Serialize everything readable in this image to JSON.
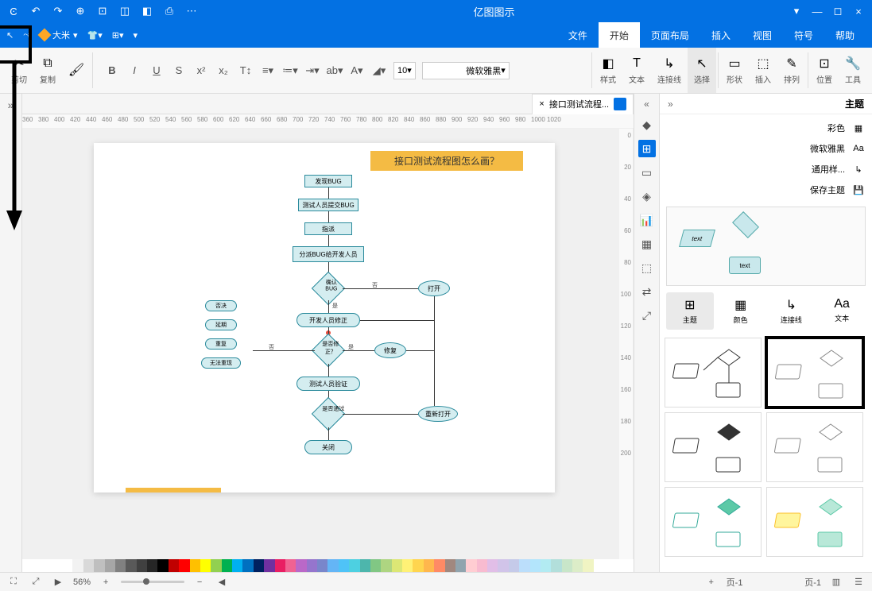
{
  "titlebar": {
    "app_title": "亿图图示"
  },
  "menubar": {
    "user_label": "大米"
  },
  "tabs": {
    "items": [
      {
        "label": "文件"
      },
      {
        "label": "开始"
      },
      {
        "label": "页面布局"
      },
      {
        "label": "插入"
      },
      {
        "label": "视图"
      },
      {
        "label": "符号"
      },
      {
        "label": "帮助"
      }
    ],
    "active_index": 1
  },
  "ribbon": {
    "font_name": "微软雅黑",
    "font_size": "10",
    "groups": [
      {
        "label": "剪切"
      },
      {
        "label": "复制"
      },
      {
        "label": "样式"
      },
      {
        "label": "选择"
      },
      {
        "label": "连接线"
      },
      {
        "label": "文本"
      },
      {
        "label": "形状"
      },
      {
        "label": "插入"
      },
      {
        "label": "排列"
      },
      {
        "label": "位置"
      },
      {
        "label": "工具"
      }
    ]
  },
  "doctab": {
    "name": "接口测试流程...",
    "close": "×"
  },
  "ruler_marks_h": [
    "360",
    "380",
    "400",
    "420",
    "440",
    "460",
    "480",
    "500",
    "520",
    "540",
    "560",
    "580",
    "600",
    "620",
    "640",
    "660",
    "680",
    "700",
    "720",
    "740",
    "760",
    "780",
    "800",
    "820",
    "840",
    "860",
    "880",
    "900",
    "920",
    "940",
    "960",
    "980",
    "1000",
    "1020"
  ],
  "ruler_marks_v": [
    "0",
    "20",
    "40",
    "60",
    "80",
    "100",
    "120",
    "140",
    "160",
    "180",
    "200"
  ],
  "page": {
    "title": "接口测试流程图怎么画？",
    "flow": {
      "box1": "发现BUG",
      "box2": "测试人员提交BUG",
      "box3": "指派",
      "box4": "分派BUG给开发人员",
      "dia1": "确认BUG",
      "ell1": "打开",
      "round1": "开发人员修正",
      "dia2": "是否修正？",
      "ell2": "修复",
      "round2": "测试人员验证",
      "dia3": "是否通过",
      "ell3": "重新打开",
      "round3": "关闭",
      "side1": "否决",
      "side2": "延期",
      "side3": "重复",
      "side4": "无法重现",
      "yn_yes": "是",
      "yn_no": "否"
    }
  },
  "vtoolbar": {
    "items": [
      "⊞",
      "▭",
      "◈",
      "▦",
      "⊡",
      "⬚",
      "⇄",
      "⤢"
    ],
    "active_index": 0
  },
  "rightpanel": {
    "title": "主题",
    "opt1": "彩色",
    "opt2": "微软雅黑",
    "opt3": "通用样...",
    "opt4": "保存主题",
    "tab_labels": [
      "主题",
      "颜色",
      "连接线",
      "文本"
    ],
    "tab_active": 0
  },
  "statusbar": {
    "page_left": "页-1",
    "page_right": "页-1",
    "zoom": "56%"
  },
  "palette_colors": [
    "#ffffff",
    "#f2f2f2",
    "#d9d9d9",
    "#bfbfbf",
    "#a6a6a6",
    "#808080",
    "#595959",
    "#404040",
    "#262626",
    "#000000",
    "#c00000",
    "#ff0000",
    "#ffc000",
    "#ffff00",
    "#92d050",
    "#00b050",
    "#00b0f0",
    "#0070c0",
    "#002060",
    "#7030a0",
    "#e91e63",
    "#f06292",
    "#ba68c8",
    "#9575cd",
    "#7986cb",
    "#64b5f6",
    "#4fc3f7",
    "#4dd0e1",
    "#4db6ac",
    "#81c784",
    "#aed581",
    "#dce775",
    "#fff176",
    "#ffd54f",
    "#ffb74d",
    "#ff8a65",
    "#a1887f",
    "#90a4ae",
    "#ffcdd2",
    "#f8bbd0",
    "#e1bee7",
    "#d1c4e9",
    "#c5cae9",
    "#bbdefb",
    "#b3e5fc",
    "#b2ebf2",
    "#b2dfdb",
    "#c8e6c9",
    "#dcedc8",
    "#f0f4c3"
  ]
}
